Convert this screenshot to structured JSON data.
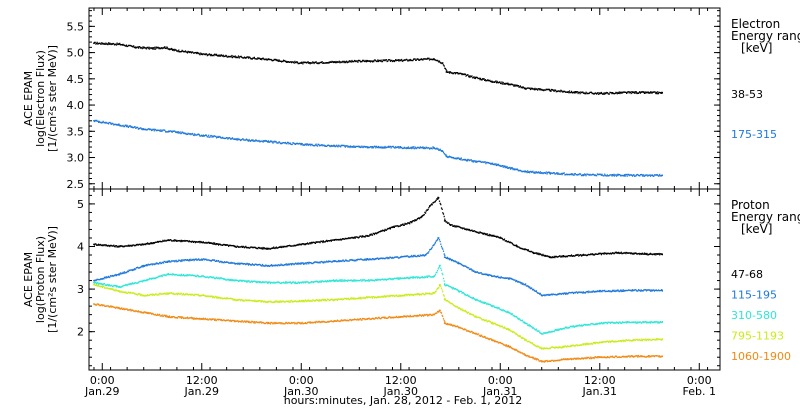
{
  "colors": {
    "black": "#000000",
    "blue": "#1e78dc",
    "cyan": "#2ee6d6",
    "yellowgreen": "#c8ec1a",
    "orange": "#f08a14"
  },
  "xlabel": "hours:minutes, Jan. 28, 2012 - Feb. 1, 2012",
  "x_ticks": [
    {
      "hour": 0,
      "time": "0:00",
      "date": "Jan.29"
    },
    {
      "hour": 12,
      "time": "12:00",
      "date": "Jan.29"
    },
    {
      "hour": 24,
      "time": "0:00",
      "date": "Jan.30"
    },
    {
      "hour": 36,
      "time": "12:00",
      "date": "Jan.30"
    },
    {
      "hour": 48,
      "time": "0:00",
      "date": "Jan.31"
    },
    {
      "hour": 60,
      "time": "12:00",
      "date": "Jan.31"
    },
    {
      "hour": 72,
      "time": "0:00",
      "date": "Feb. 1"
    }
  ],
  "chart_data": [
    {
      "type": "line",
      "panel": "electron",
      "ylabel_lines": [
        "ACE EPAM",
        "log(Electron Flux)",
        "[1/(cm²s ster MeV)]"
      ],
      "xlim_hours_from_jan29": [
        -1.6,
        74.5
      ],
      "ylim": [
        2.4,
        5.85
      ],
      "y_ticks": [
        "2.5",
        "3.0",
        "3.5",
        "4.0",
        "4.5",
        "5.0",
        "5.5"
      ],
      "legend_title_lines": [
        "Electron",
        "Energy ranges",
        "[keV]"
      ],
      "series": [
        {
          "name": "38-53",
          "color": "#000000",
          "points": [
            [
              -1.0,
              5.18
            ],
            [
              2.0,
              5.16
            ],
            [
              4.0,
              5.1
            ],
            [
              6.0,
              5.08
            ],
            [
              7.5,
              5.1
            ],
            [
              8.5,
              5.05
            ],
            [
              12.0,
              4.97
            ],
            [
              16.0,
              4.92
            ],
            [
              20.0,
              4.87
            ],
            [
              24.0,
              4.8
            ],
            [
              28.0,
              4.82
            ],
            [
              32.0,
              4.84
            ],
            [
              36.0,
              4.85
            ],
            [
              40.0,
              4.88
            ],
            [
              41.0,
              4.8
            ],
            [
              41.5,
              4.63
            ],
            [
              43.0,
              4.6
            ],
            [
              45.0,
              4.52
            ],
            [
              47.0,
              4.45
            ],
            [
              49.0,
              4.4
            ],
            [
              51.0,
              4.32
            ],
            [
              54.0,
              4.28
            ],
            [
              57.0,
              4.24
            ],
            [
              60.0,
              4.22
            ],
            [
              64.0,
              4.24
            ],
            [
              67.5,
              4.23
            ]
          ]
        },
        {
          "name": "175-315",
          "color": "#1e78dc",
          "points": [
            [
              -1.0,
              3.7
            ],
            [
              2.0,
              3.62
            ],
            [
              5.0,
              3.54
            ],
            [
              8.0,
              3.5
            ],
            [
              12.0,
              3.42
            ],
            [
              16.0,
              3.35
            ],
            [
              20.0,
              3.3
            ],
            [
              24.0,
              3.25
            ],
            [
              28.0,
              3.22
            ],
            [
              32.0,
              3.2
            ],
            [
              36.0,
              3.19
            ],
            [
              40.0,
              3.18
            ],
            [
              41.0,
              3.12
            ],
            [
              41.5,
              3.02
            ],
            [
              44.0,
              2.95
            ],
            [
              47.0,
              2.88
            ],
            [
              49.0,
              2.8
            ],
            [
              51.0,
              2.73
            ],
            [
              54.0,
              2.7
            ],
            [
              58.0,
              2.67
            ],
            [
              63.0,
              2.66
            ],
            [
              67.5,
              2.66
            ]
          ]
        }
      ]
    },
    {
      "type": "line",
      "panel": "proton",
      "ylabel_lines": [
        "ACE EPAM",
        "log(Proton Flux)",
        "[1/(cm²s ster MeV)]"
      ],
      "xlim_hours_from_jan29": [
        -1.6,
        74.5
      ],
      "ylim": [
        1.1,
        5.35
      ],
      "y_ticks": [
        "2",
        "3",
        "4",
        "5"
      ],
      "legend_title_lines": [
        "Proton",
        "Energy ranges",
        "[keV]"
      ],
      "series": [
        {
          "name": "47-68",
          "color": "#000000",
          "points": [
            [
              -1.0,
              4.05
            ],
            [
              2.0,
              4.0
            ],
            [
              5.0,
              4.05
            ],
            [
              8.0,
              4.15
            ],
            [
              12.0,
              4.1
            ],
            [
              16.0,
              4.0
            ],
            [
              20.0,
              3.95
            ],
            [
              24.0,
              4.05
            ],
            [
              28.0,
              4.15
            ],
            [
              32.0,
              4.25
            ],
            [
              35.0,
              4.45
            ],
            [
              37.0,
              4.55
            ],
            [
              38.5,
              4.7
            ],
            [
              39.5,
              4.95
            ],
            [
              40.5,
              5.15
            ],
            [
              41.3,
              4.6
            ],
            [
              42.0,
              4.5
            ],
            [
              44.0,
              4.4
            ],
            [
              46.0,
              4.3
            ],
            [
              48.0,
              4.2
            ],
            [
              50.0,
              4.0
            ],
            [
              52.0,
              3.85
            ],
            [
              54.0,
              3.75
            ],
            [
              58.0,
              3.8
            ],
            [
              62.0,
              3.85
            ],
            [
              66.0,
              3.82
            ],
            [
              67.5,
              3.82
            ]
          ]
        },
        {
          "name": "115-195",
          "color": "#1e78dc",
          "points": [
            [
              -1.0,
              3.2
            ],
            [
              2.0,
              3.35
            ],
            [
              5.0,
              3.55
            ],
            [
              8.0,
              3.65
            ],
            [
              12.0,
              3.7
            ],
            [
              16.0,
              3.6
            ],
            [
              20.0,
              3.55
            ],
            [
              24.0,
              3.6
            ],
            [
              28.0,
              3.65
            ],
            [
              32.0,
              3.7
            ],
            [
              36.0,
              3.75
            ],
            [
              39.0,
              3.8
            ],
            [
              40.5,
              4.2
            ],
            [
              41.3,
              3.75
            ],
            [
              43.0,
              3.6
            ],
            [
              45.0,
              3.4
            ],
            [
              47.0,
              3.3
            ],
            [
              49.0,
              3.25
            ],
            [
              51.0,
              3.1
            ],
            [
              53.0,
              2.85
            ],
            [
              56.0,
              2.9
            ],
            [
              60.0,
              2.95
            ],
            [
              64.0,
              2.97
            ],
            [
              67.5,
              2.97
            ]
          ]
        },
        {
          "name": "310-580",
          "color": "#2ee6d6",
          "points": [
            [
              -1.0,
              3.15
            ],
            [
              2.0,
              3.05
            ],
            [
              5.0,
              3.2
            ],
            [
              8.0,
              3.35
            ],
            [
              12.0,
              3.3
            ],
            [
              16.0,
              3.2
            ],
            [
              20.0,
              3.15
            ],
            [
              24.0,
              3.15
            ],
            [
              28.0,
              3.2
            ],
            [
              32.0,
              3.2
            ],
            [
              36.0,
              3.25
            ],
            [
              40.0,
              3.3
            ],
            [
              40.7,
              3.55
            ],
            [
              41.3,
              3.1
            ],
            [
              43.0,
              2.95
            ],
            [
              45.0,
              2.75
            ],
            [
              47.0,
              2.6
            ],
            [
              49.0,
              2.45
            ],
            [
              51.0,
              2.2
            ],
            [
              53.0,
              1.95
            ],
            [
              56.0,
              2.1
            ],
            [
              60.0,
              2.2
            ],
            [
              64.0,
              2.22
            ],
            [
              67.5,
              2.22
            ]
          ]
        },
        {
          "name": "795-1193",
          "color": "#c8ec1a",
          "points": [
            [
              -1.0,
              3.1
            ],
            [
              2.0,
              2.95
            ],
            [
              5.0,
              2.85
            ],
            [
              8.0,
              2.9
            ],
            [
              12.0,
              2.85
            ],
            [
              16.0,
              2.75
            ],
            [
              20.0,
              2.7
            ],
            [
              24.0,
              2.72
            ],
            [
              28.0,
              2.75
            ],
            [
              32.0,
              2.8
            ],
            [
              36.0,
              2.85
            ],
            [
              40.0,
              2.9
            ],
            [
              40.7,
              3.1
            ],
            [
              41.3,
              2.75
            ],
            [
              43.0,
              2.55
            ],
            [
              45.0,
              2.35
            ],
            [
              47.0,
              2.2
            ],
            [
              49.0,
              2.05
            ],
            [
              51.0,
              1.8
            ],
            [
              53.0,
              1.6
            ],
            [
              56.0,
              1.65
            ],
            [
              60.0,
              1.75
            ],
            [
              64.0,
              1.8
            ],
            [
              67.5,
              1.82
            ]
          ]
        },
        {
          "name": "1060-1900",
          "color": "#f08a14",
          "points": [
            [
              -1.0,
              2.65
            ],
            [
              2.0,
              2.55
            ],
            [
              5.0,
              2.45
            ],
            [
              8.0,
              2.35
            ],
            [
              12.0,
              2.3
            ],
            [
              16.0,
              2.25
            ],
            [
              20.0,
              2.2
            ],
            [
              24.0,
              2.2
            ],
            [
              28.0,
              2.25
            ],
            [
              32.0,
              2.3
            ],
            [
              36.0,
              2.35
            ],
            [
              40.0,
              2.4
            ],
            [
              40.7,
              2.5
            ],
            [
              41.3,
              2.2
            ],
            [
              43.0,
              2.1
            ],
            [
              45.0,
              1.95
            ],
            [
              47.0,
              1.8
            ],
            [
              49.0,
              1.65
            ],
            [
              51.0,
              1.45
            ],
            [
              53.0,
              1.3
            ],
            [
              56.0,
              1.35
            ],
            [
              60.0,
              1.4
            ],
            [
              64.0,
              1.42
            ],
            [
              67.5,
              1.42
            ]
          ]
        }
      ]
    }
  ]
}
